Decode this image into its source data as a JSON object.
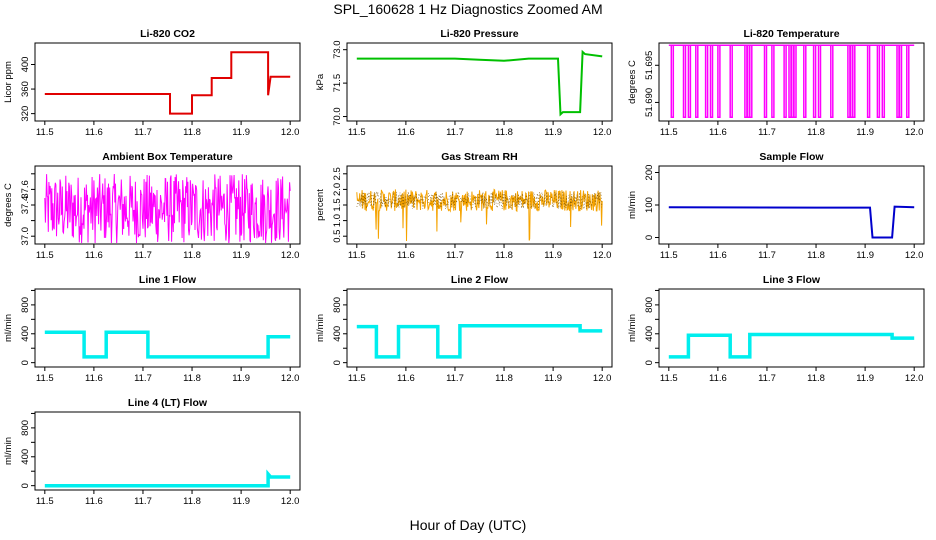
{
  "figure": {
    "title": "SPL_160628  1 Hz Diagnostics Zoomed AM",
    "xlabel": "Hour of Day (UTC)"
  },
  "colors": {
    "red": "#e00000",
    "green": "#00c000",
    "magenta": "#ff00ff",
    "orange": "#f5a300",
    "blue": "#0000cc",
    "cyan": "#00eeee",
    "axis": "#000000"
  },
  "chart_data": [
    {
      "type": "line",
      "title": "Li-820 CO2",
      "ylabel": "Licor ppm",
      "color": "red",
      "xlim": [
        11.48,
        12.02
      ],
      "ylim": [
        308,
        435
      ],
      "xticks": [
        "11.5",
        "11.6",
        "11.7",
        "11.8",
        "11.9",
        "12.0"
      ],
      "yticks": [
        320,
        360,
        400
      ],
      "series": [
        {
          "x": [
            11.5,
            11.755,
            11.755,
            11.8,
            11.8,
            11.84,
            11.84,
            11.88,
            11.88,
            11.955,
            11.955,
            11.96,
            11.96,
            12.0
          ],
          "y": [
            352,
            352,
            320,
            320,
            350,
            350,
            378,
            378,
            420,
            420,
            350,
            380,
            380,
            380
          ]
        }
      ]
    },
    {
      "type": "line",
      "title": "Li-820 Pressure",
      "ylabel": "kPa",
      "color": "green",
      "xlim": [
        11.48,
        12.02
      ],
      "ylim": [
        69.8,
        73.3
      ],
      "xticks": [
        "11.5",
        "11.6",
        "11.7",
        "11.8",
        "11.9",
        "12.0"
      ],
      "yticks": [
        70.0,
        71.5,
        73.0
      ],
      "ytick_labels": [
        "70.0",
        "71.5",
        "73.0"
      ],
      "series": [
        {
          "x": [
            11.5,
            11.6,
            11.7,
            11.75,
            11.8,
            11.85,
            11.91,
            11.915,
            11.92,
            11.955,
            11.96,
            11.965,
            12.0
          ],
          "y": [
            72.6,
            72.6,
            72.6,
            72.55,
            72.5,
            72.6,
            72.6,
            70.1,
            70.2,
            70.2,
            72.9,
            72.8,
            72.7
          ]
        }
      ]
    },
    {
      "type": "line",
      "title": "Li-820 Temperature",
      "ylabel": "degrees C",
      "color": "magenta",
      "xlim": [
        11.48,
        12.02
      ],
      "ylim": [
        51.6875,
        51.698
      ],
      "xticks": [
        "11.5",
        "11.6",
        "11.7",
        "11.8",
        "11.9",
        "12.0"
      ],
      "yticks": [
        51.69,
        51.695
      ],
      "ytick_labels": [
        "51.690",
        "51.695"
      ],
      "base": 51.6977,
      "low": 51.688,
      "drops": [
        11.505,
        11.53,
        11.54,
        11.555,
        11.575,
        11.585,
        11.6,
        11.625,
        11.655,
        11.66,
        11.665,
        11.695,
        11.71,
        11.735,
        11.745,
        11.75,
        11.755,
        11.775,
        11.795,
        11.805,
        11.83,
        11.865,
        11.87,
        11.875,
        11.905,
        11.925,
        11.935,
        11.965,
        11.97,
        11.985
      ]
    },
    {
      "type": "line",
      "title": "Ambient Box Temperature",
      "ylabel": "degrees C",
      "color": "magenta",
      "xlim": [
        11.48,
        12.02
      ],
      "ylim": [
        36.9,
        37.9
      ],
      "xticks": [
        "11.5",
        "11.6",
        "11.7",
        "11.8",
        "11.9",
        "12.0"
      ],
      "yticks": [
        37.0,
        37.2,
        37.4,
        37.6,
        37.8
      ],
      "ytick_labels": [
        "37.0",
        "",
        "37.4",
        "37.6",
        ""
      ],
      "noise": {
        "center": 37.35,
        "amp": 0.45,
        "x0": 11.5,
        "x1": 12.0
      }
    },
    {
      "type": "line",
      "title": "Gas Stream RH",
      "ylabel": "percent",
      "color": "orange",
      "xlim": [
        11.48,
        12.02
      ],
      "ylim": [
        0.25,
        2.75
      ],
      "xticks": [
        "11.5",
        "11.6",
        "11.7",
        "11.8",
        "11.9",
        "12.0"
      ],
      "yticks": [
        0.5,
        1.0,
        1.5,
        2.0,
        2.5
      ],
      "ytick_labels": [
        "0.5",
        "1.0",
        "1.5",
        "2.0",
        "2.5"
      ],
      "noise": {
        "center": 1.65,
        "amp": 0.35,
        "x0": 11.5,
        "x1": 12.0
      }
    },
    {
      "type": "line",
      "title": "Sample Flow",
      "ylabel": "ml/min",
      "color": "blue",
      "xlim": [
        11.48,
        12.02
      ],
      "ylim": [
        -20,
        220
      ],
      "xticks": [
        "11.5",
        "11.6",
        "11.7",
        "11.8",
        "11.9",
        "12.0"
      ],
      "yticks": [
        0,
        100,
        200
      ],
      "series": [
        {
          "x": [
            11.5,
            11.8,
            11.91,
            11.915,
            11.955,
            11.96,
            12.0
          ],
          "y": [
            93,
            92,
            92,
            0,
            0,
            95,
            93
          ]
        }
      ]
    },
    {
      "type": "line",
      "title": "Line 1 Flow",
      "ylabel": "ml/min",
      "color": "cyan",
      "xlim": [
        11.48,
        12.02
      ],
      "ylim": [
        -60,
        1020
      ],
      "xticks": [
        "11.5",
        "11.6",
        "11.7",
        "11.8",
        "11.9",
        "12.0"
      ],
      "yticks": [
        0,
        200,
        400,
        600,
        800,
        1000
      ],
      "ytick_labels": [
        "0",
        "",
        "400",
        "",
        "800",
        ""
      ],
      "series": [
        {
          "x": [
            11.5,
            11.58,
            11.58,
            11.625,
            11.625,
            11.71,
            11.71,
            11.955,
            11.955,
            12.0
          ],
          "y": [
            420,
            420,
            80,
            80,
            420,
            420,
            80,
            80,
            360,
            360
          ]
        }
      ]
    },
    {
      "type": "line",
      "title": "Line 2 Flow",
      "ylabel": "ml/min",
      "color": "cyan",
      "xlim": [
        11.48,
        12.02
      ],
      "ylim": [
        -60,
        1020
      ],
      "xticks": [
        "11.5",
        "11.6",
        "11.7",
        "11.8",
        "11.9",
        "12.0"
      ],
      "yticks": [
        0,
        200,
        400,
        600,
        800,
        1000
      ],
      "ytick_labels": [
        "0",
        "",
        "400",
        "",
        "800",
        ""
      ],
      "series": [
        {
          "x": [
            11.5,
            11.54,
            11.54,
            11.585,
            11.585,
            11.665,
            11.665,
            11.71,
            11.71,
            11.955,
            11.955,
            12.0
          ],
          "y": [
            500,
            500,
            80,
            80,
            500,
            500,
            80,
            80,
            510,
            510,
            440,
            440
          ]
        }
      ]
    },
    {
      "type": "line",
      "title": "Line 3 Flow",
      "ylabel": "ml/min",
      "color": "cyan",
      "xlim": [
        11.48,
        12.02
      ],
      "ylim": [
        -60,
        1020
      ],
      "xticks": [
        "11.5",
        "11.6",
        "11.7",
        "11.8",
        "11.9",
        "12.0"
      ],
      "yticks": [
        0,
        200,
        400,
        600,
        800,
        1000
      ],
      "ytick_labels": [
        "0",
        "",
        "400",
        "",
        "800",
        ""
      ],
      "series": [
        {
          "x": [
            11.5,
            11.54,
            11.54,
            11.625,
            11.625,
            11.665,
            11.665,
            11.955,
            11.955,
            12.0
          ],
          "y": [
            80,
            80,
            380,
            380,
            80,
            80,
            390,
            390,
            340,
            340
          ]
        }
      ]
    },
    {
      "type": "line",
      "title": "Line 4 (LT) Flow",
      "ylabel": "ml/min",
      "color": "cyan",
      "xlim": [
        11.48,
        12.02
      ],
      "ylim": [
        -60,
        1020
      ],
      "xticks": [
        "11.5",
        "11.6",
        "11.7",
        "11.8",
        "11.9",
        "12.0"
      ],
      "yticks": [
        0,
        200,
        400,
        600,
        800,
        1000
      ],
      "ytick_labels": [
        "0",
        "",
        "400",
        "",
        "800",
        ""
      ],
      "series": [
        {
          "x": [
            11.5,
            11.955,
            11.955,
            11.96,
            12.0
          ],
          "y": [
            0,
            0,
            160,
            120,
            120
          ]
        }
      ]
    }
  ]
}
